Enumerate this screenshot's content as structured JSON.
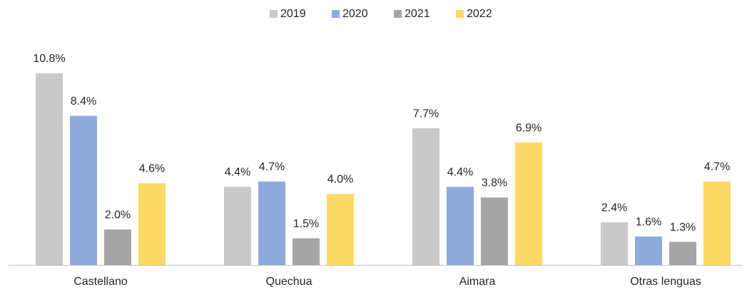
{
  "chart_data": {
    "type": "bar",
    "categories": [
      "Castellano",
      "Quechua",
      "Aimara",
      "Otras lenguas"
    ],
    "series": [
      {
        "name": "2019",
        "color": "#c9c9c9",
        "values": [
          10.8,
          4.4,
          7.7,
          2.4
        ],
        "value_labels": [
          "10.8%",
          "4.4%",
          "7.7%",
          "2.4%"
        ]
      },
      {
        "name": "2020",
        "color": "#8faadc",
        "values": [
          8.4,
          4.7,
          4.4,
          1.6
        ],
        "value_labels": [
          "8.4%",
          "4.7%",
          "4.4%",
          "1.6%"
        ]
      },
      {
        "name": "2021",
        "color": "#a5a5a5",
        "values": [
          2.0,
          1.5,
          3.8,
          1.3
        ],
        "value_labels": [
          "2.0%",
          "1.5%",
          "3.8%",
          "1.3%"
        ]
      },
      {
        "name": "2022",
        "color": "#ffd966",
        "values": [
          4.6,
          4.0,
          6.9,
          4.7
        ],
        "value_labels": [
          "4.6%",
          "4.0%",
          "6.9%",
          "4.7%"
        ]
      }
    ],
    "ylim": [
      0,
      12
    ],
    "legend": "top"
  }
}
